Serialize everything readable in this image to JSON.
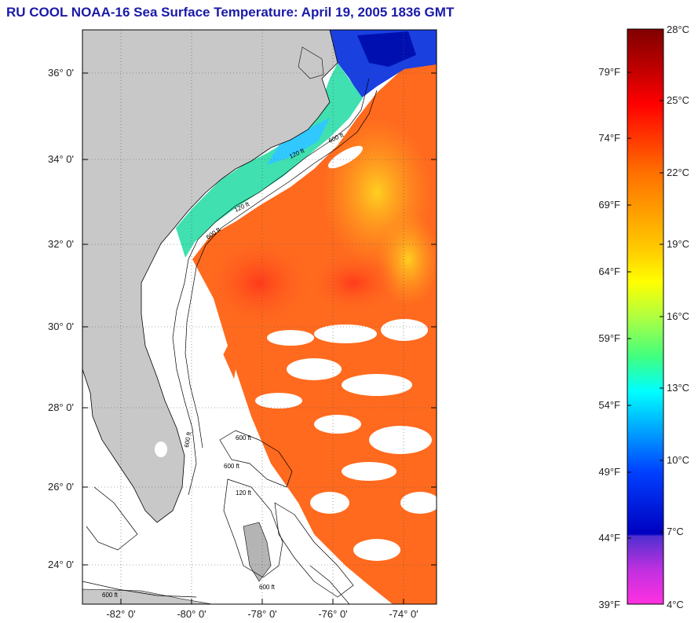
{
  "title": "RU COOL  NOAA-16  Sea Surface Temperature:  April 19, 2005 1836 GMT",
  "map": {
    "lat_labels": [
      "36° 0'",
      "34° 0'",
      "32° 0'",
      "30° 0'",
      "28° 0'",
      "26° 0'",
      "24° 0'"
    ],
    "lon_labels": [
      "-82° 0'",
      "-80° 0'",
      "-78° 0'",
      "-76° 0'",
      "-74° 0'"
    ],
    "contour_labels": [
      "600 ft",
      "120 ft",
      "600 ft",
      "120 ft",
      "600 ft",
      "600 ft",
      "600 ft",
      "600 ft",
      "120 ft",
      "600 ft"
    ],
    "colors": {
      "land": "#c8c8c8",
      "cloud": "#ffffff",
      "frame": "#000000"
    }
  },
  "colorbar": {
    "celsius_labels": [
      "28°C",
      "25°C",
      "22°C",
      "19°C",
      "16°C",
      "13°C",
      "10°C",
      "7°C",
      "4°C"
    ],
    "fahrenheit_labels": [
      "79°F",
      "74°F",
      "69°F",
      "64°F",
      "59°F",
      "54°F",
      "49°F",
      "44°F",
      "39°F"
    ],
    "celsius_range": [
      4,
      28
    ]
  }
}
